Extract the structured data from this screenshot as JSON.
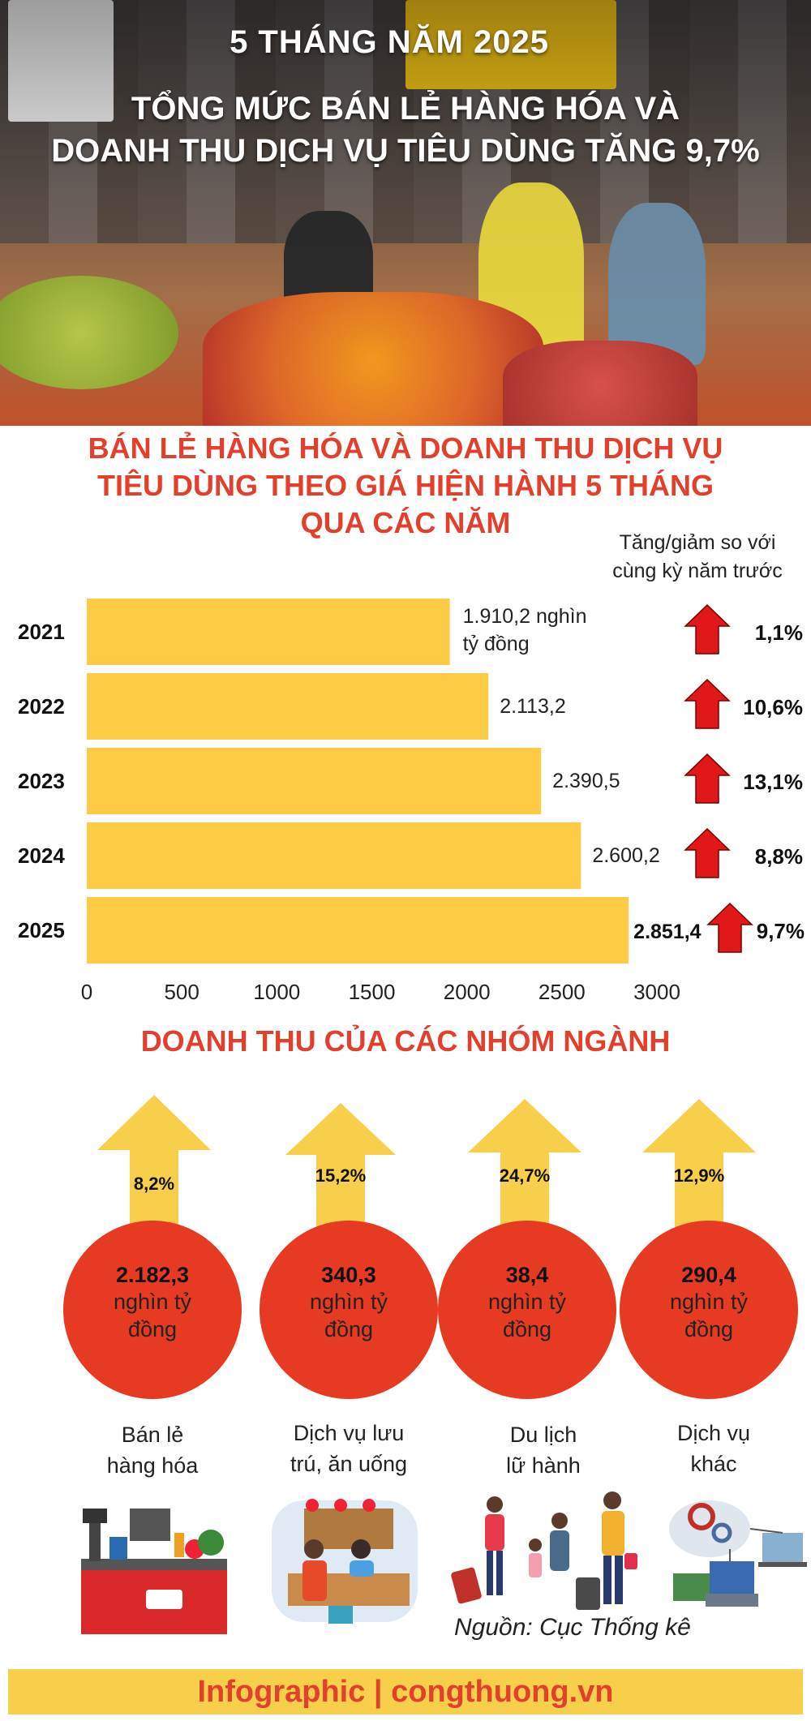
{
  "hero": {
    "period": "5 THÁNG NĂM 2025",
    "headline_line1": "TỔNG MỨC BÁN LẺ HÀNG HÓA VÀ",
    "headline_line2": "DOANH THU DỊCH VỤ TIÊU DÙNG TĂNG 9,7%"
  },
  "chart_title": {
    "line1": "BÁN LẺ HÀNG HÓA VÀ DOANH THU DỊCH VỤ",
    "line2": "TIÊU DÙNG THEO GIÁ HIỆN HÀNH 5 THÁNG",
    "line3": "QUA CÁC NĂM"
  },
  "change_header": {
    "line1": "Tăng/giảm so với",
    "line2": "cùng kỳ năm trước"
  },
  "chart_data": {
    "type": "bar",
    "orientation": "horizontal",
    "categories": [
      "2021",
      "2022",
      "2023",
      "2024",
      "2025"
    ],
    "values": [
      1910.2,
      2113.2,
      2390.5,
      2600.2,
      2851.4
    ],
    "value_labels": [
      "1.910,2 nghìn tỷ đồng",
      "2.113,2",
      "2.390,5",
      "2.600,2",
      "2.851,4"
    ],
    "change_pct": [
      "1,1%",
      "10,6%",
      "13,1%",
      "8,8%",
      "9,7%"
    ],
    "xlim": [
      0,
      3000
    ],
    "xticks": [
      "0",
      "500",
      "1000",
      "1500",
      "2000",
      "2500",
      "3000"
    ],
    "bar_color": "#fdcb46",
    "arrow_color": "#e0181a"
  },
  "groups_title": "DOANH THU CỦA CÁC NHÓM NGÀNH",
  "groups": [
    {
      "pct": "8,2%",
      "value": "2.182,3",
      "unit1": "nghìn tỷ",
      "unit2": "đồng",
      "label1": "Bán lẻ",
      "label2": "hàng hóa",
      "icon": "cash-register-icon"
    },
    {
      "pct": "15,2%",
      "value": "340,3",
      "unit1": "nghìn tỷ",
      "unit2": "đồng",
      "label1": "Dịch vụ lưu",
      "label2": "trú, ăn uống",
      "icon": "hotel-reception-icon"
    },
    {
      "pct": "24,7%",
      "value": "38,4",
      "unit1": "nghìn tỷ",
      "unit2": "đồng",
      "label1": "Du lịch",
      "label2": "lữ hành",
      "icon": "travelers-icon"
    },
    {
      "pct": "12,9%",
      "value": "290,4",
      "unit1": "nghìn tỷ",
      "unit2": "đồng",
      "label1": "Dịch vụ",
      "label2": "khác",
      "icon": "cloud-services-icon"
    }
  ],
  "colors": {
    "accent_red": "#e2402d",
    "circle_red": "#e63a23",
    "arrow_yellow": "#f7cf4a",
    "footer_bg": "#f7cf4a"
  },
  "source": "Nguồn: Cục Thống kê",
  "footer": "Infographic | congthuong.vn"
}
